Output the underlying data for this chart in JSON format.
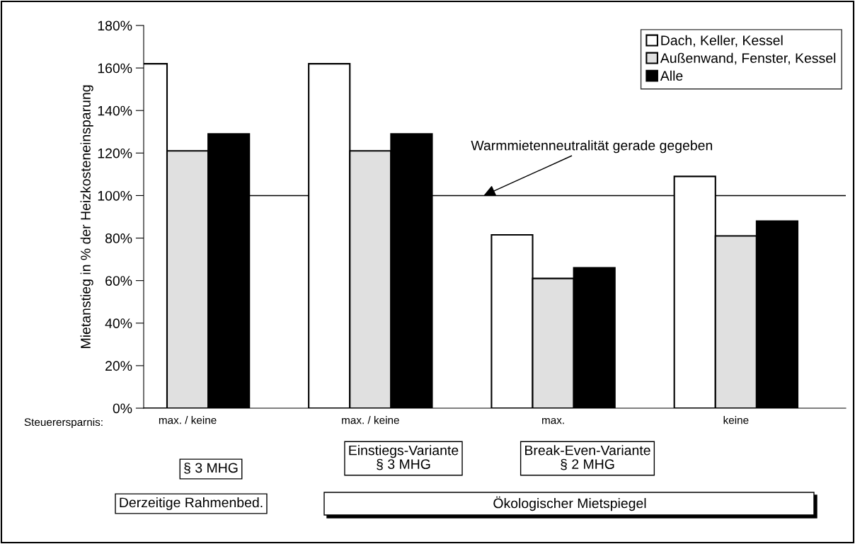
{
  "chart_data": {
    "type": "bar",
    "ylabel": "Mietanstieg in % der Heizkosteneinsparung",
    "categories": [
      "max. / keine",
      "max. / keine",
      "max.",
      "keine"
    ],
    "series": [
      {
        "name": "Dach, Keller, Kessel",
        "color": "#ffffff",
        "values": [
          162,
          162,
          81.5,
          109
        ]
      },
      {
        "name": "Außenwand, Fenster, Kessel",
        "color": "#e0e0e0",
        "values": [
          121,
          121,
          61,
          81
        ]
      },
      {
        "name": "Alle",
        "color": "#000000",
        "values": [
          129,
          129,
          66,
          88
        ]
      }
    ],
    "ylim": [
      0,
      180
    ],
    "yticks": [
      {
        "value": 0,
        "label": "0%"
      },
      {
        "value": 20,
        "label": "20%"
      },
      {
        "value": 40,
        "label": "40%"
      },
      {
        "value": 60,
        "label": "60%"
      },
      {
        "value": 80,
        "label": "80%"
      },
      {
        "value": 100,
        "label": "100%"
      },
      {
        "value": 120,
        "label": "120%"
      },
      {
        "value": 140,
        "label": "140%"
      },
      {
        "value": 160,
        "label": "160%"
      },
      {
        "value": 180,
        "label": "180%"
      }
    ],
    "ref_lines": [
      {
        "axis": "y",
        "value": 100,
        "label": "Warmmietenneutralität gerade gegeben",
        "color": "#000000"
      }
    ],
    "annotations": [
      "Steuerersparnis:",
      "§ 3 MHG",
      "Einstiegs-Variante\n§ 3 MHG",
      "Break-Even-Variante\n§ 2 MHG",
      "Derzeitige Rahmenbed.",
      "Ökologischer Mietspiegel"
    ],
    "legend": "top right",
    "grid": false
  }
}
